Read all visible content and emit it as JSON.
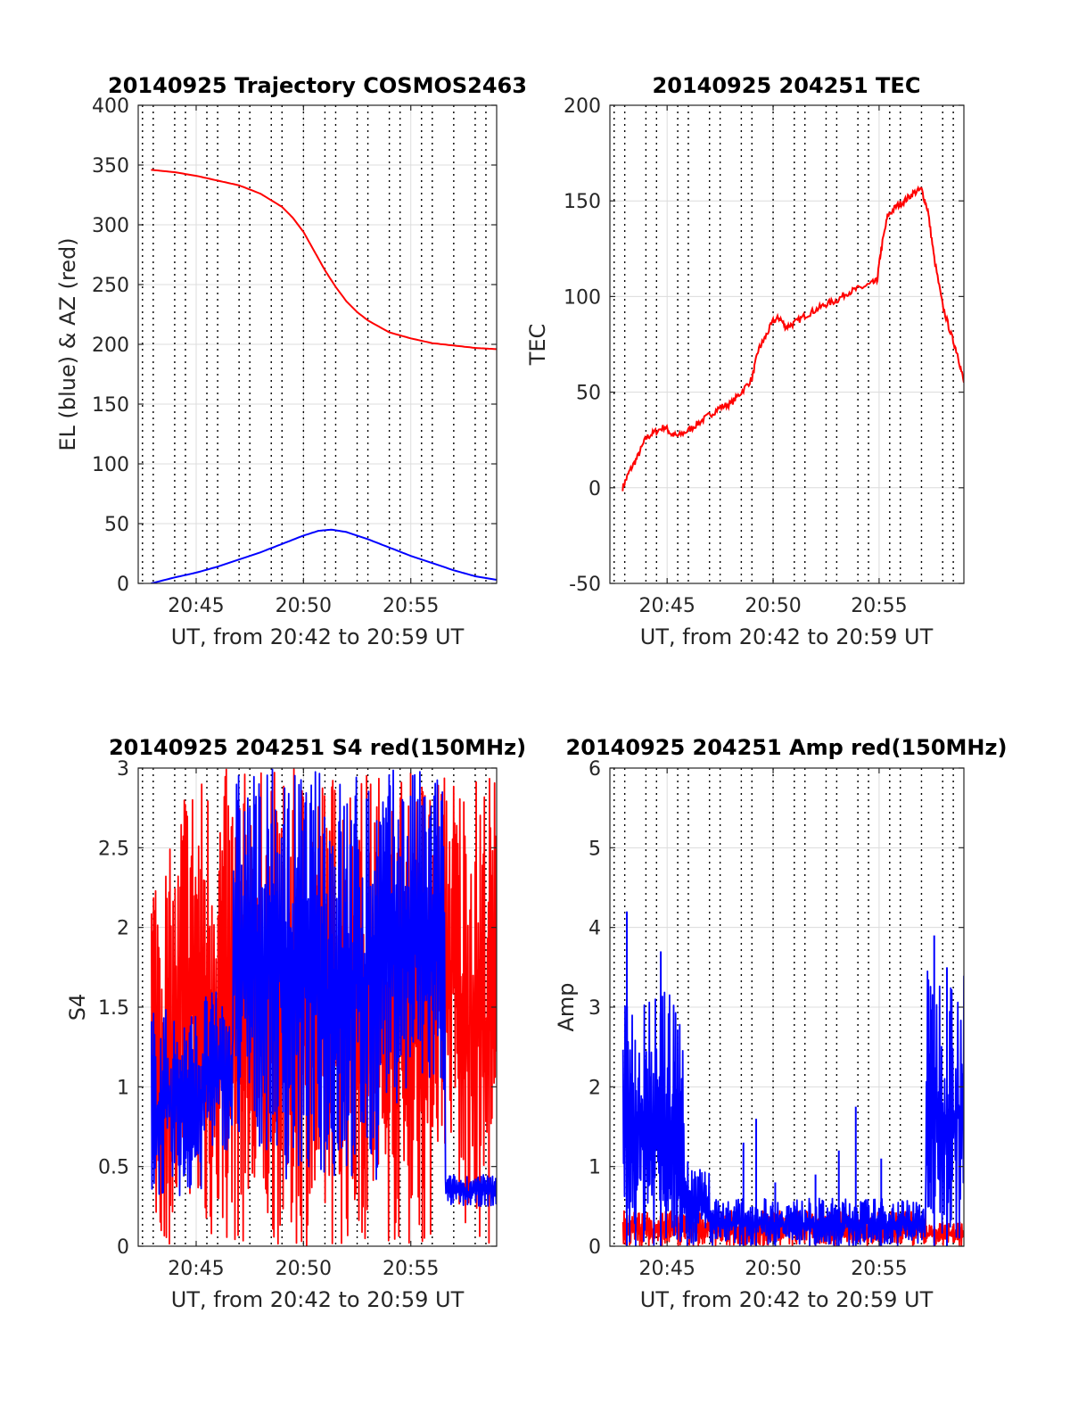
{
  "figure": {
    "time_ticks": [
      "20:45",
      "20:50",
      "20:55"
    ],
    "colors": {
      "red": "#ff0000",
      "blue": "#0000ff",
      "grid": "#dcdcdc",
      "axis": "#262626"
    }
  },
  "chart_data": [
    {
      "type": "line",
      "title": "20140925 Trajectory COSMOS2463",
      "xlabel": "UT, from 20:42 to 20:59 UT",
      "ylabel": "EL (blue) & AZ (red)",
      "xlim_minutes": [
        42.3,
        59.0
      ],
      "ylim": [
        0,
        400
      ],
      "yticks": [
        "0",
        "50",
        "100",
        "150",
        "200",
        "250",
        "300",
        "350",
        "400"
      ],
      "xticks": [
        "20:45",
        "20:50",
        "20:55"
      ],
      "series": [
        {
          "color": "red",
          "x": [
            42.9,
            44,
            45,
            46,
            47,
            48,
            49,
            49.5,
            50,
            50.5,
            51,
            51.5,
            52,
            52.5,
            53,
            54,
            55,
            56,
            57,
            58,
            59
          ],
          "y": [
            346,
            344,
            341,
            337,
            333,
            326,
            315,
            306,
            294,
            278,
            262,
            248,
            236,
            227,
            220,
            210,
            205,
            201,
            199,
            197,
            196
          ]
        },
        {
          "color": "blue",
          "x": [
            42.9,
            44,
            45,
            46,
            47,
            48,
            49,
            50,
            50.7,
            51.3,
            52,
            53,
            54,
            55,
            56,
            57,
            58,
            59
          ],
          "y": [
            0,
            5,
            9,
            14,
            20,
            26,
            33,
            40,
            44,
            45,
            43,
            37,
            30,
            23,
            17,
            11,
            6,
            3
          ]
        }
      ]
    },
    {
      "type": "line",
      "title": "20140925 204251 TEC",
      "xlabel": "UT, from 20:42 to 20:59 UT",
      "ylabel": "TEC",
      "xlim_minutes": [
        42.3,
        59.0
      ],
      "ylim": [
        -50,
        200
      ],
      "yticks": [
        "-50",
        "0",
        "50",
        "100",
        "150",
        "200"
      ],
      "xticks": [
        "20:45",
        "20:50",
        "20:55"
      ],
      "series": [
        {
          "color": "red",
          "x": [
            42.9,
            43.2,
            43.6,
            44.0,
            44.4,
            44.9,
            45.2,
            45.5,
            46.0,
            46.5,
            47.0,
            47.5,
            48.0,
            48.5,
            49.0,
            49.3,
            49.6,
            50.0,
            50.3,
            50.6,
            51.0,
            51.5,
            52.0,
            52.5,
            53.0,
            53.5,
            54.0,
            54.5,
            54.9,
            55.1,
            55.4,
            55.8,
            56.2,
            56.6,
            57.0,
            57.3,
            57.6,
            58.0,
            58.4,
            58.7,
            59.0
          ],
          "y": [
            0,
            8,
            16,
            26,
            29,
            32,
            28,
            27,
            30,
            34,
            38,
            42,
            44,
            50,
            57,
            72,
            78,
            87,
            89,
            84,
            86,
            90,
            93,
            96,
            98,
            102,
            104,
            106,
            108,
            125,
            142,
            147,
            150,
            154,
            156,
            145,
            120,
            95,
            80,
            70,
            55
          ]
        }
      ]
    },
    {
      "type": "line",
      "title": "20140925 204251 S4 red(150MHz)",
      "xlabel": "UT, from 20:42 to 20:59 UT",
      "ylabel": "S4",
      "xlim_minutes": [
        42.3,
        59.0
      ],
      "ylim": [
        0,
        3
      ],
      "yticks": [
        "0",
        "0.5",
        "1",
        "1.5",
        "2",
        "2.5",
        "3"
      ],
      "xticks": [
        "20:45",
        "20:50",
        "20:55"
      ],
      "series": [
        {
          "color": "red",
          "envelope": [
            {
              "x": [
                42.9,
                44.3
              ],
              "range": [
                0,
                2.5
              ]
            },
            {
              "x": [
                44.3,
                45.0
              ],
              "range": [
                0.3,
                3
              ]
            },
            {
              "x": [
                45.0,
                46.0
              ],
              "range": [
                0,
                3
              ]
            },
            {
              "x": [
                46.0,
                56.0
              ],
              "range": [
                0,
                3
              ]
            },
            {
              "x": [
                56.0,
                57.2
              ],
              "range": [
                0.6,
                3
              ]
            },
            {
              "x": [
                57.2,
                59.0
              ],
              "range": [
                0,
                3
              ]
            }
          ]
        },
        {
          "color": "blue",
          "envelope": [
            {
              "x": [
                42.9,
                45.3
              ],
              "range": [
                0.3,
                1.5
              ]
            },
            {
              "x": [
                45.3,
                46.7
              ],
              "range": [
                0.6,
                1.6
              ]
            },
            {
              "x": [
                46.7,
                49.0
              ],
              "range": [
                0.6,
                3
              ]
            },
            {
              "x": [
                49.0,
                53.5
              ],
              "range": [
                0.4,
                3
              ]
            },
            {
              "x": [
                53.5,
                56.6
              ],
              "range": [
                0.9,
                3
              ]
            },
            {
              "x": [
                56.6,
                59.0
              ],
              "range": [
                0.25,
                0.45
              ]
            }
          ]
        }
      ]
    },
    {
      "type": "line",
      "title": "20140925 204251 Amp red(150MHz)",
      "xlabel": "UT, from 20:42 to 20:59 UT",
      "ylabel": "Amp",
      "xlim_minutes": [
        42.3,
        59.0
      ],
      "ylim": [
        0,
        6
      ],
      "yticks": [
        "0",
        "1",
        "2",
        "3",
        "4",
        "5",
        "6"
      ],
      "xticks": [
        "20:45",
        "20:50",
        "20:55"
      ],
      "series": [
        {
          "color": "red",
          "envelope": [
            {
              "x": [
                42.9,
                57.2
              ],
              "range": [
                0,
                0.45
              ]
            },
            {
              "x": [
                57.2,
                59.0
              ],
              "range": [
                0,
                0.3
              ]
            }
          ]
        },
        {
          "color": "blue",
          "envelope": [
            {
              "x": [
                42.9,
                45.8
              ],
              "range": [
                0,
                3.2
              ]
            },
            {
              "x": [
                45.8,
                47.0
              ],
              "range": [
                0,
                1.1
              ]
            },
            {
              "x": [
                47.0,
                57.2
              ],
              "range": [
                0,
                0.6
              ]
            },
            {
              "x": [
                57.2,
                59.0
              ],
              "range": [
                0,
                3.5
              ]
            }
          ],
          "peaks": [
            {
              "x": 43.1,
              "y": 4.2
            },
            {
              "x": 44.7,
              "y": 3.7
            },
            {
              "x": 48.6,
              "y": 1.3
            },
            {
              "x": 49.2,
              "y": 1.6
            },
            {
              "x": 50.1,
              "y": 0.8
            },
            {
              "x": 52.0,
              "y": 0.9
            },
            {
              "x": 53.1,
              "y": 1.2
            },
            {
              "x": 53.9,
              "y": 1.75
            },
            {
              "x": 55.1,
              "y": 1.1
            },
            {
              "x": 57.6,
              "y": 3.9
            },
            {
              "x": 58.2,
              "y": 3.5
            }
          ]
        }
      ]
    }
  ]
}
